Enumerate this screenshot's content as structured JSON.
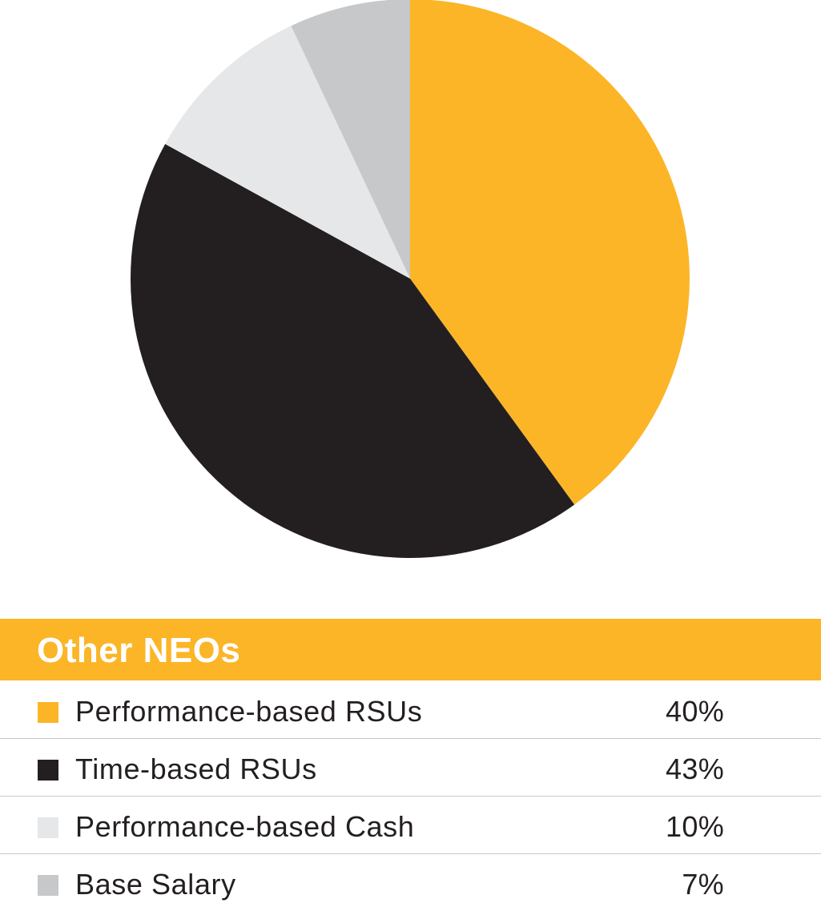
{
  "chart_data": {
    "type": "pie",
    "title": "Other NEOs",
    "start_angle_deg": 0,
    "direction": "clockwise",
    "slices": [
      {
        "label": "Performance-based RSUs",
        "value": 40,
        "display": "40%",
        "color": "#FBB527"
      },
      {
        "label": "Time-based RSUs",
        "value": 43,
        "display": "43%",
        "color": "#231F20"
      },
      {
        "label": "Performance-based Cash",
        "value": 10,
        "display": "10%",
        "color": "#E6E7E8"
      },
      {
        "label": "Base Salary",
        "value": 7,
        "display": "7%",
        "color": "#C7C8CA"
      }
    ]
  }
}
